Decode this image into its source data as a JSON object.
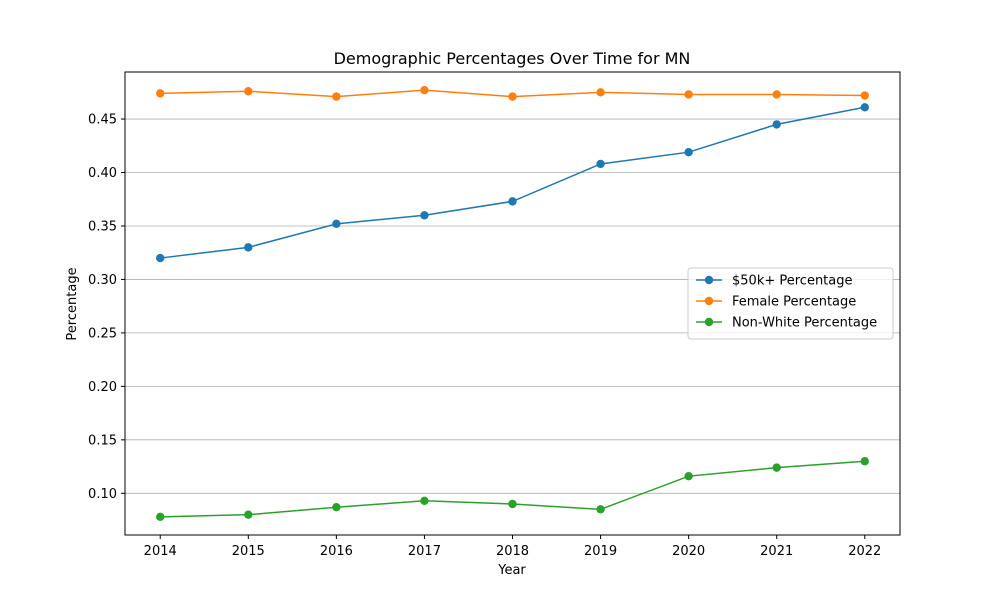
{
  "chart_data": {
    "type": "line",
    "title": "Demographic Percentages Over Time for MN",
    "xlabel": "Year",
    "ylabel": "Percentage",
    "x": [
      2014,
      2015,
      2016,
      2017,
      2018,
      2019,
      2020,
      2021,
      2022
    ],
    "xlim": [
      2013.6,
      2022.4
    ],
    "ylim": [
      0.061,
      0.494
    ],
    "yticks": [
      0.1,
      0.15,
      0.2,
      0.25,
      0.3,
      0.35,
      0.4,
      0.45
    ],
    "ytick_labels": [
      "0.10",
      "0.15",
      "0.20",
      "0.25",
      "0.30",
      "0.35",
      "0.40",
      "0.45"
    ],
    "grid": "horizontal",
    "legend_position": "center-right",
    "series": [
      {
        "name": "$50k+ Percentage",
        "color": "#1f77b4",
        "values": [
          0.32,
          0.33,
          0.352,
          0.36,
          0.373,
          0.408,
          0.419,
          0.445,
          0.461
        ]
      },
      {
        "name": "Female Percentage",
        "color": "#ff7f0e",
        "values": [
          0.474,
          0.476,
          0.471,
          0.477,
          0.471,
          0.475,
          0.473,
          0.473,
          0.472
        ]
      },
      {
        "name": "Non-White Percentage",
        "color": "#2ca02c",
        "values": [
          0.078,
          0.08,
          0.087,
          0.093,
          0.09,
          0.085,
          0.116,
          0.124,
          0.13
        ]
      }
    ]
  }
}
